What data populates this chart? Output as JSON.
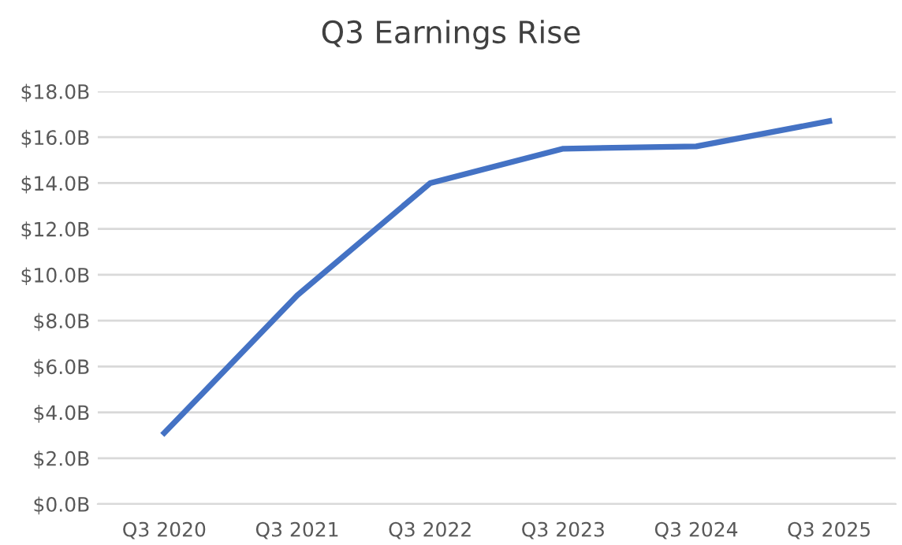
{
  "chart_data": {
    "type": "line",
    "title": "Q3 Earnings Rise",
    "categories": [
      "Q3 2020",
      "Q3 2021",
      "Q3 2022",
      "Q3 2023",
      "Q3 2024",
      "Q3 2025"
    ],
    "series": [
      {
        "color": "#4472c4",
        "values": [
          3.1,
          9.1,
          14.0,
          15.5,
          15.6,
          16.7
        ]
      }
    ],
    "ylim": [
      0,
      18
    ],
    "yticks": [
      {
        "value": 0,
        "label": "$0.0B"
      },
      {
        "value": 2,
        "label": "$2.0B"
      },
      {
        "value": 4,
        "label": "$4.0B"
      },
      {
        "value": 6,
        "label": "$6.0B"
      },
      {
        "value": 8,
        "label": "$8.0B"
      },
      {
        "value": 10,
        "label": "$10.0B"
      },
      {
        "value": 12,
        "label": "$12.0B"
      },
      {
        "value": 14,
        "label": "$14.0B"
      },
      {
        "value": 16,
        "label": "$16.0B"
      },
      {
        "value": 18,
        "label": "$18.0B"
      }
    ],
    "grid": "y",
    "marker": "none",
    "line_style": "solid",
    "legend": false
  }
}
